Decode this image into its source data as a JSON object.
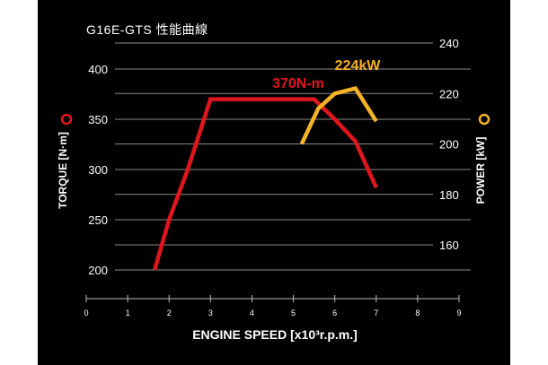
{
  "chart_data": {
    "type": "line",
    "title": "G16E-GTS 性能曲線",
    "xlabel": "ENGINE SPEED [x10³r.p.m.]",
    "ylabel_left": "TORQUE [N·m]",
    "ylabel_right": "POWER [kW]",
    "x_ticks": [
      "0",
      "1",
      "2",
      "3",
      "4",
      "5",
      "6",
      "7",
      "8",
      "9"
    ],
    "xlim": [
      0,
      9
    ],
    "y_left_ticks": [
      "200",
      "250",
      "300",
      "350",
      "400"
    ],
    "y_left_lim": [
      200,
      400
    ],
    "y_right_ticks": [
      "160",
      "180",
      "200",
      "220",
      "240"
    ],
    "y_right_lim": [
      160,
      240
    ],
    "grid": true,
    "series": [
      {
        "name": "TORQUE",
        "axis": "left",
        "color": "#e0161f",
        "points": [
          [
            1.65,
            200
          ],
          [
            2.0,
            250
          ],
          [
            2.45,
            300
          ],
          [
            3.0,
            370
          ],
          [
            5.5,
            370
          ],
          [
            6.0,
            350
          ],
          [
            6.5,
            328
          ],
          [
            7.0,
            282
          ]
        ]
      },
      {
        "name": "POWER",
        "axis": "right",
        "color": "#f5b325",
        "points": [
          [
            5.2,
            200
          ],
          [
            5.6,
            214
          ],
          [
            6.0,
            220
          ],
          [
            6.5,
            222
          ],
          [
            7.0,
            209
          ]
        ]
      }
    ],
    "annotations": [
      {
        "text": "370N-m",
        "series": "TORQUE"
      },
      {
        "text": "224kW",
        "series": "POWER"
      }
    ]
  }
}
